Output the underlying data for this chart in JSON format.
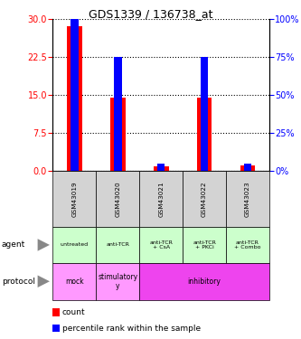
{
  "title": "GDS1339 / 136738_at",
  "samples": [
    "GSM43019",
    "GSM43020",
    "GSM43021",
    "GSM43022",
    "GSM43023"
  ],
  "count_values": [
    28.5,
    14.5,
    1.0,
    14.5,
    1.2
  ],
  "percentile_values": [
    35.0,
    22.5,
    1.5,
    22.5,
    1.5
  ],
  "ylim_left": [
    0,
    30
  ],
  "ylim_right": [
    0,
    100
  ],
  "yticks_left": [
    0,
    7.5,
    15,
    22.5,
    30
  ],
  "yticks_right": [
    0,
    25,
    50,
    75,
    100
  ],
  "agent_labels": [
    "untreated",
    "anti-TCR",
    "anti-TCR\n+ CsA",
    "anti-TCR\n+ PKCi",
    "anti-TCR\n+ Combo"
  ],
  "agent_color": "#ccffcc",
  "protocol_spans": [
    {
      "label": "mock",
      "span": 1,
      "color": "#ff99ff"
    },
    {
      "label": "stimulatory\ny",
      "span": 1,
      "color": "#ff99ff"
    },
    {
      "label": "inhibitory",
      "span": 3,
      "color": "#ee44ee"
    }
  ],
  "sample_bg_color": "#d3d3d3",
  "count_color": "#ff0000",
  "percentile_color": "#0000ff",
  "bar_width": 0.35,
  "percentile_bar_width": 0.18
}
